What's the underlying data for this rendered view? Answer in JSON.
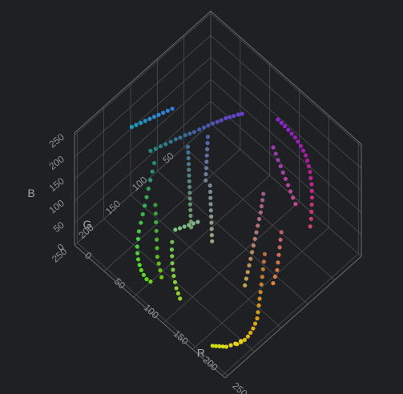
{
  "chart_data": {
    "type": "scatter",
    "subtype": "3d-scatter",
    "title": "",
    "axes": {
      "x": {
        "label": "R",
        "range": [
          0,
          255
        ],
        "ticks": [
          "0",
          "50",
          "100",
          "150",
          "200",
          "250"
        ]
      },
      "y": {
        "label": "G",
        "range": [
          0,
          255
        ],
        "ticks": [
          "50",
          "100",
          "150",
          "200",
          "250"
        ]
      },
      "z": {
        "label": "B",
        "range": [
          0,
          255
        ],
        "ticks": [
          "0",
          "50",
          "100",
          "150",
          "200",
          "250"
        ]
      }
    },
    "grid": true,
    "background": "#1f2023",
    "points": [
      [
        112,
        65,
        225
      ],
      [
        108,
        68,
        222
      ],
      [
        104,
        72,
        218
      ],
      [
        100,
        75,
        214
      ],
      [
        96,
        78,
        210
      ],
      [
        92,
        82,
        205
      ],
      [
        88,
        85,
        200
      ],
      [
        84,
        89,
        196
      ],
      [
        80,
        93,
        191
      ],
      [
        76,
        97,
        186
      ],
      [
        72,
        101,
        181
      ],
      [
        68,
        106,
        176
      ],
      [
        64,
        110,
        172
      ],
      [
        60,
        114,
        168
      ],
      [
        56,
        119,
        163
      ],
      [
        52,
        123,
        159
      ],
      [
        48,
        128,
        154
      ],
      [
        44,
        133,
        149
      ],
      [
        40,
        138,
        145
      ],
      [
        36,
        143,
        140
      ],
      [
        32,
        148,
        136
      ],
      [
        150,
        40,
        230
      ],
      [
        154,
        38,
        225
      ],
      [
        158,
        36,
        220
      ],
      [
        162,
        34,
        214
      ],
      [
        166,
        32,
        208
      ],
      [
        170,
        30,
        202
      ],
      [
        174,
        29,
        196
      ],
      [
        178,
        28,
        190
      ],
      [
        182,
        28,
        184
      ],
      [
        186,
        28,
        178
      ],
      [
        190,
        29,
        172
      ],
      [
        194,
        31,
        166
      ],
      [
        198,
        33,
        160
      ],
      [
        202,
        36,
        154
      ],
      [
        206,
        39,
        148
      ],
      [
        210,
        43,
        142
      ],
      [
        214,
        47,
        136
      ],
      [
        218,
        52,
        130
      ],
      [
        222,
        57,
        124
      ],
      [
        226,
        62,
        118
      ],
      [
        230,
        68,
        112
      ],
      [
        40,
        150,
        120
      ],
      [
        44,
        158,
        114
      ],
      [
        48,
        166,
        108
      ],
      [
        52,
        174,
        102
      ],
      [
        56,
        182,
        96
      ],
      [
        60,
        190,
        90
      ],
      [
        64,
        198,
        84
      ],
      [
        68,
        206,
        78
      ],
      [
        72,
        214,
        72
      ],
      [
        76,
        220,
        66
      ],
      [
        80,
        226,
        60
      ],
      [
        84,
        230,
        54
      ],
      [
        88,
        233,
        48
      ],
      [
        92,
        235,
        42
      ],
      [
        96,
        236,
        36
      ],
      [
        100,
        236,
        30
      ],
      [
        104,
        235,
        24
      ],
      [
        108,
        232,
        20
      ],
      [
        120,
        205,
        95
      ],
      [
        124,
        210,
        88
      ],
      [
        128,
        214,
        82
      ],
      [
        132,
        218,
        75
      ],
      [
        136,
        221,
        68
      ],
      [
        140,
        224,
        62
      ],
      [
        144,
        226,
        55
      ],
      [
        148,
        228,
        48
      ],
      [
        152,
        229,
        42
      ],
      [
        156,
        230,
        36
      ],
      [
        200,
        120,
        70
      ],
      [
        204,
        126,
        64
      ],
      [
        208,
        132,
        58
      ],
      [
        212,
        138,
        52
      ],
      [
        216,
        144,
        46
      ],
      [
        220,
        150,
        40
      ],
      [
        224,
        156,
        36
      ],
      [
        228,
        162,
        32
      ],
      [
        232,
        168,
        28
      ],
      [
        236,
        174,
        25
      ],
      [
        238,
        180,
        22
      ],
      [
        240,
        186,
        20
      ],
      [
        241,
        192,
        18
      ],
      [
        242,
        198,
        17
      ],
      [
        242,
        204,
        16
      ],
      [
        241,
        210,
        16
      ],
      [
        240,
        216,
        17
      ],
      [
        175,
        95,
        150
      ],
      [
        178,
        100,
        145
      ],
      [
        181,
        105,
        140
      ],
      [
        184,
        110,
        135
      ],
      [
        187,
        116,
        130
      ],
      [
        190,
        122,
        125
      ],
      [
        193,
        128,
        120
      ],
      [
        196,
        134,
        115
      ],
      [
        199,
        140,
        110
      ],
      [
        202,
        146,
        105
      ],
      [
        205,
        152,
        100
      ],
      [
        208,
        158,
        95
      ],
      [
        211,
        164,
        90
      ],
      [
        214,
        170,
        85
      ],
      [
        217,
        176,
        80
      ],
      [
        70,
        120,
        160
      ],
      [
        74,
        124,
        156
      ],
      [
        78,
        128,
        152
      ],
      [
        82,
        132,
        148
      ],
      [
        86,
        136,
        144
      ],
      [
        90,
        140,
        140
      ],
      [
        94,
        144,
        136
      ],
      [
        98,
        148,
        132
      ],
      [
        102,
        152,
        128
      ],
      [
        106,
        156,
        124
      ],
      [
        110,
        160,
        120
      ],
      [
        114,
        164,
        116
      ],
      [
        118,
        168,
        112
      ],
      [
        122,
        172,
        108
      ],
      [
        126,
        176,
        104
      ],
      [
        130,
        145,
        170
      ],
      [
        134,
        149,
        165
      ],
      [
        138,
        153,
        160
      ],
      [
        142,
        157,
        155
      ],
      [
        146,
        161,
        150
      ],
      [
        150,
        165,
        145
      ],
      [
        154,
        169,
        140
      ],
      [
        158,
        173,
        135
      ],
      [
        162,
        177,
        130
      ],
      [
        166,
        181,
        125
      ],
      [
        60,
        170,
        70
      ],
      [
        66,
        176,
        64
      ],
      [
        72,
        182,
        58
      ],
      [
        78,
        188,
        52
      ],
      [
        84,
        194,
        46
      ],
      [
        90,
        200,
        40
      ],
      [
        96,
        206,
        34
      ],
      [
        102,
        210,
        30
      ],
      [
        108,
        214,
        26
      ],
      [
        114,
        218,
        22
      ],
      [
        20,
        170,
        200
      ],
      [
        24,
        166,
        205
      ],
      [
        28,
        162,
        210
      ],
      [
        32,
        158,
        215
      ],
      [
        36,
        154,
        220
      ],
      [
        40,
        150,
        225
      ],
      [
        44,
        146,
        230
      ],
      [
        48,
        142,
        235
      ],
      [
        52,
        138,
        240
      ],
      [
        56,
        134,
        245
      ],
      [
        160,
        60,
        200
      ],
      [
        166,
        62,
        195
      ],
      [
        172,
        64,
        190
      ],
      [
        178,
        66,
        185
      ],
      [
        184,
        68,
        180
      ],
      [
        190,
        70,
        175
      ],
      [
        196,
        72,
        170
      ],
      [
        202,
        74,
        165
      ],
      [
        208,
        76,
        160
      ],
      [
        214,
        78,
        155
      ],
      [
        210,
        100,
        110
      ],
      [
        214,
        106,
        104
      ],
      [
        218,
        112,
        98
      ],
      [
        222,
        118,
        92
      ],
      [
        226,
        124,
        86
      ],
      [
        230,
        130,
        80
      ],
      [
        232,
        136,
        74
      ],
      [
        234,
        142,
        68
      ],
      [
        90,
        105,
        190
      ],
      [
        94,
        110,
        186
      ],
      [
        98,
        115,
        182
      ],
      [
        102,
        120,
        178
      ],
      [
        106,
        125,
        174
      ],
      [
        110,
        130,
        170
      ],
      [
        114,
        135,
        166
      ],
      [
        118,
        140,
        162
      ],
      [
        150,
        190,
        160
      ],
      [
        146,
        194,
        156
      ],
      [
        142,
        198,
        152
      ],
      [
        138,
        202,
        148
      ],
      [
        134,
        206,
        144
      ],
      [
        130,
        210,
        140
      ],
      [
        250,
        220,
        40
      ],
      [
        246,
        226,
        36
      ],
      [
        242,
        230,
        32
      ],
      [
        238,
        234,
        28
      ],
      [
        234,
        236,
        26
      ],
      [
        230,
        238,
        24
      ],
      [
        226,
        240,
        22
      ],
      [
        222,
        242,
        20
      ]
    ]
  }
}
